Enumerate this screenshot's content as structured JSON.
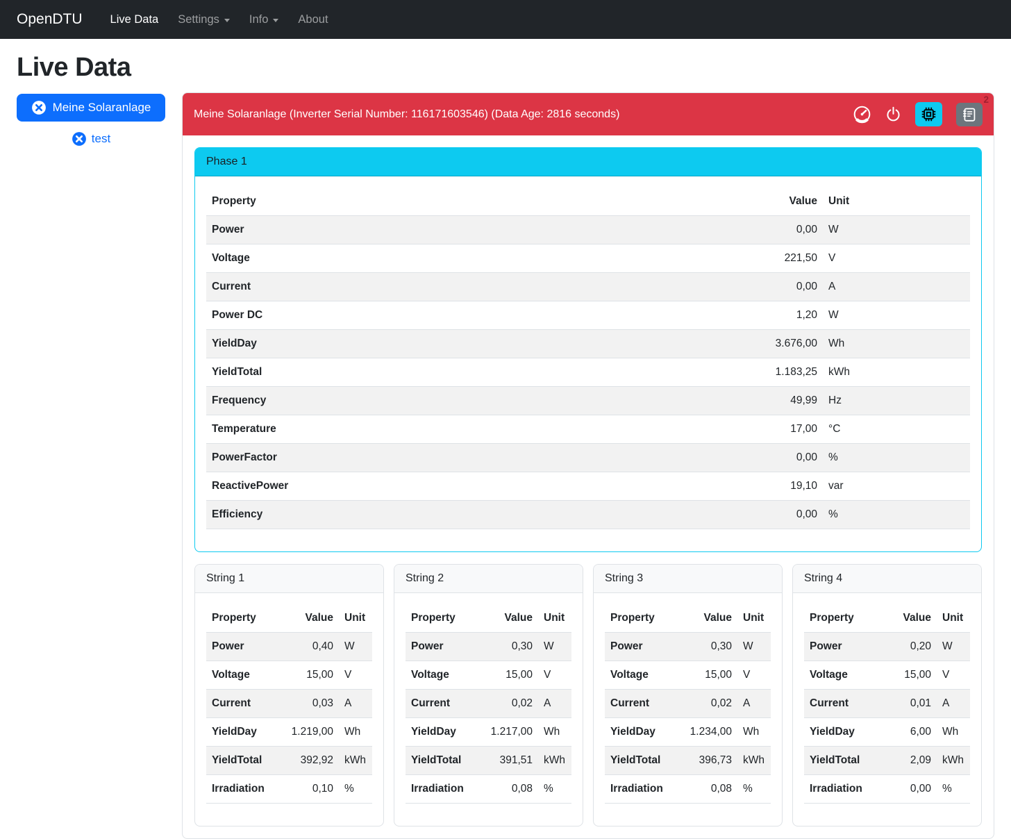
{
  "navbar": {
    "brand": "OpenDTU",
    "items": [
      {
        "label": "Live Data",
        "active": true,
        "dropdown": false
      },
      {
        "label": "Settings",
        "active": false,
        "dropdown": true
      },
      {
        "label": "Info",
        "active": false,
        "dropdown": true
      },
      {
        "label": "About",
        "active": false,
        "dropdown": false
      }
    ]
  },
  "page_title": "Live Data",
  "sidebar": {
    "selected_inverter": "Meine Solaranlage",
    "other_inverter": "test"
  },
  "panel": {
    "header": "Meine Solaranlage (Inverter Serial Number: 116171603546) (Data Age: 2816 seconds)",
    "toolbar": {
      "icons": [
        "speedometer-icon",
        "power-icon",
        "cpu-icon",
        "journal-text-icon"
      ],
      "event_badge_count": "2"
    },
    "columns": [
      "Property",
      "Value",
      "Unit"
    ],
    "phase": {
      "title": "Phase 1",
      "rows": [
        [
          "Power",
          "0,00",
          "W"
        ],
        [
          "Voltage",
          "221,50",
          "V"
        ],
        [
          "Current",
          "0,00",
          "A"
        ],
        [
          "Power DC",
          "1,20",
          "W"
        ],
        [
          "YieldDay",
          "3.676,00",
          "Wh"
        ],
        [
          "YieldTotal",
          "1.183,25",
          "kWh"
        ],
        [
          "Frequency",
          "49,99",
          "Hz"
        ],
        [
          "Temperature",
          "17,00",
          "°C"
        ],
        [
          "PowerFactor",
          "0,00",
          "%"
        ],
        [
          "ReactivePower",
          "19,10",
          "var"
        ],
        [
          "Efficiency",
          "0,00",
          "%"
        ]
      ]
    },
    "strings": [
      {
        "title": "String 1",
        "rows": [
          [
            "Power",
            "0,40",
            "W"
          ],
          [
            "Voltage",
            "15,00",
            "V"
          ],
          [
            "Current",
            "0,03",
            "A"
          ],
          [
            "YieldDay",
            "1.219,00",
            "Wh"
          ],
          [
            "YieldTotal",
            "392,92",
            "kWh"
          ],
          [
            "Irradiation",
            "0,10",
            "%"
          ]
        ]
      },
      {
        "title": "String 2",
        "rows": [
          [
            "Power",
            "0,30",
            "W"
          ],
          [
            "Voltage",
            "15,00",
            "V"
          ],
          [
            "Current",
            "0,02",
            "A"
          ],
          [
            "YieldDay",
            "1.217,00",
            "Wh"
          ],
          [
            "YieldTotal",
            "391,51",
            "kWh"
          ],
          [
            "Irradiation",
            "0,08",
            "%"
          ]
        ]
      },
      {
        "title": "String 3",
        "rows": [
          [
            "Power",
            "0,30",
            "W"
          ],
          [
            "Voltage",
            "15,00",
            "V"
          ],
          [
            "Current",
            "0,02",
            "A"
          ],
          [
            "YieldDay",
            "1.234,00",
            "Wh"
          ],
          [
            "YieldTotal",
            "396,73",
            "kWh"
          ],
          [
            "Irradiation",
            "0,08",
            "%"
          ]
        ]
      },
      {
        "title": "String 4",
        "rows": [
          [
            "Power",
            "0,20",
            "W"
          ],
          [
            "Voltage",
            "15,00",
            "V"
          ],
          [
            "Current",
            "0,01",
            "A"
          ],
          [
            "YieldDay",
            "6,00",
            "Wh"
          ],
          [
            "YieldTotal",
            "2,09",
            "kWh"
          ],
          [
            "Irradiation",
            "0,00",
            "%"
          ]
        ]
      }
    ]
  },
  "colors": {
    "navbar_bg": "#212529",
    "primary": "#0d6efd",
    "danger_header": "#dc3545",
    "info_cyan": "#0dcaf0",
    "secondary_gray": "#6c757d",
    "badge_text": "#a02030",
    "stripe": "#f2f2f2"
  }
}
